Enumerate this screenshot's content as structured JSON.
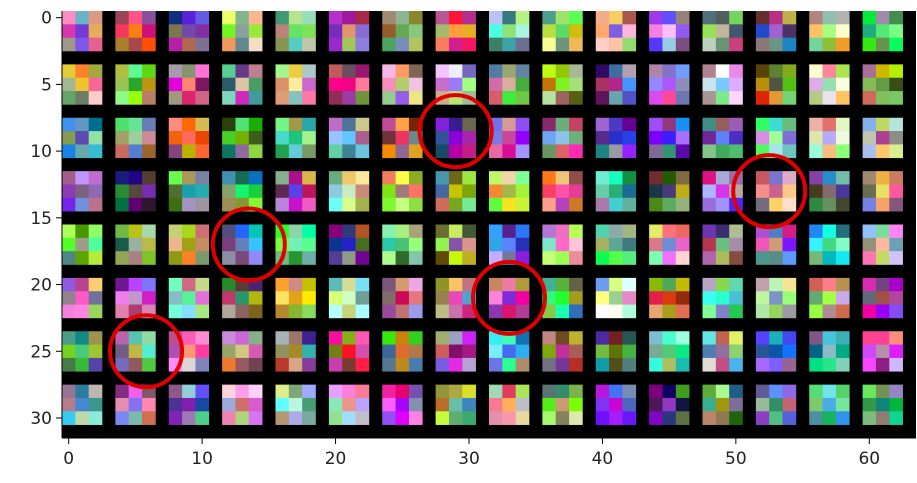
{
  "chart_data": {
    "type": "image",
    "xlim": [
      -0.5,
      63.5
    ],
    "ylim": [
      31.5,
      -0.5
    ],
    "xticks": [
      0,
      10,
      20,
      30,
      40,
      50,
      60
    ],
    "yticks": [
      0,
      5,
      10,
      15,
      20,
      25,
      30
    ],
    "highlights": {
      "color": "#e00000",
      "x": [
        29,
        52.5,
        13.5,
        33,
        5.8
      ],
      "y": [
        8.5,
        13,
        17,
        21,
        25
      ]
    }
  }
}
